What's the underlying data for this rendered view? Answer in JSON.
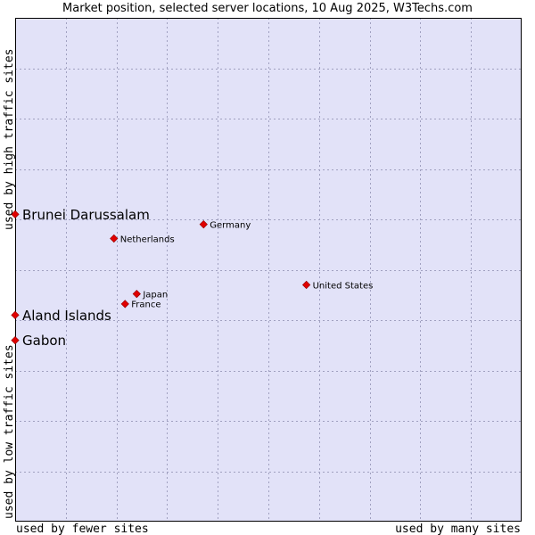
{
  "chart_data": {
    "type": "scatter",
    "title": "Market position, selected server locations, 10 Aug 2025, W3Techs.com",
    "xlabel_low": "used by fewer sites",
    "xlabel_high": "used by many sites",
    "ylabel_low": "used by low traffic sites",
    "ylabel_high": "used by high traffic sites",
    "grid": true,
    "xlim": [
      0,
      100
    ],
    "ylim": [
      0,
      100
    ],
    "colors": {
      "plot_bg": "#e2e2f8",
      "grid": "#a0a0c0",
      "point": "#e00000",
      "point_border": "#900000"
    },
    "points": [
      {
        "name": "Brunei Darussalam",
        "x": 0.0,
        "y": 61.0,
        "size": "large"
      },
      {
        "name": "Germany",
        "x": 37.2,
        "y": 59.0,
        "size": "small"
      },
      {
        "name": "Netherlands",
        "x": 19.5,
        "y": 56.2,
        "size": "small"
      },
      {
        "name": "United States",
        "x": 57.5,
        "y": 47.0,
        "size": "small"
      },
      {
        "name": "Japan",
        "x": 24.0,
        "y": 45.2,
        "size": "small"
      },
      {
        "name": "France",
        "x": 21.7,
        "y": 43.2,
        "size": "small"
      },
      {
        "name": "Aland Islands",
        "x": 0.0,
        "y": 41.0,
        "size": "large"
      },
      {
        "name": "Gabon",
        "x": 0.0,
        "y": 36.0,
        "size": "large"
      }
    ]
  }
}
